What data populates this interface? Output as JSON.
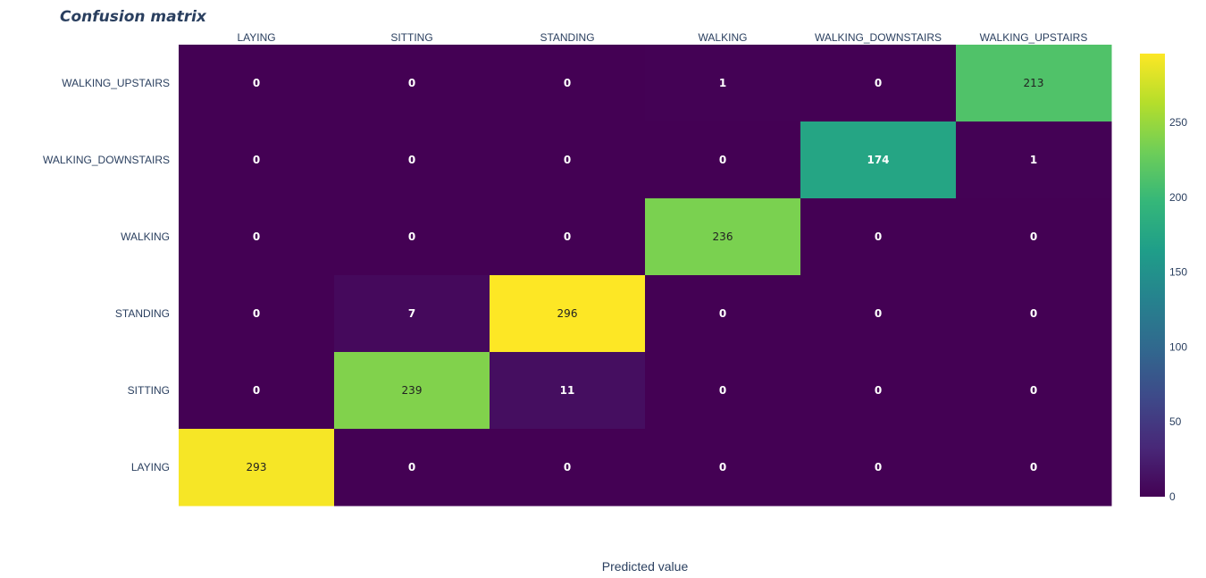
{
  "chart_data": {
    "type": "heatmap",
    "title": "Confusion matrix",
    "xlabel": "Predicted value",
    "ylabel": "",
    "x_categories": [
      "LAYING",
      "SITTING",
      "STANDING",
      "WALKING",
      "WALKING_DOWNSTAIRS",
      "WALKING_UPSTAIRS"
    ],
    "y_categories_top_to_bottom": [
      "WALKING_UPSTAIRS",
      "WALKING_DOWNSTAIRS",
      "WALKING",
      "STANDING",
      "SITTING",
      "LAYING"
    ],
    "z_top_to_bottom": [
      [
        0,
        0,
        0,
        1,
        0,
        213
      ],
      [
        0,
        0,
        0,
        0,
        174,
        1
      ],
      [
        0,
        0,
        0,
        236,
        0,
        0
      ],
      [
        0,
        7,
        296,
        0,
        0,
        0
      ],
      [
        0,
        239,
        11,
        0,
        0,
        0
      ],
      [
        293,
        0,
        0,
        0,
        0,
        0
      ]
    ],
    "zlim": [
      0,
      296
    ],
    "colorscale": "Viridis",
    "colorbar_ticks": [
      0,
      50,
      100,
      150,
      200,
      250
    ],
    "x_axis_side": "top",
    "grid": false
  }
}
